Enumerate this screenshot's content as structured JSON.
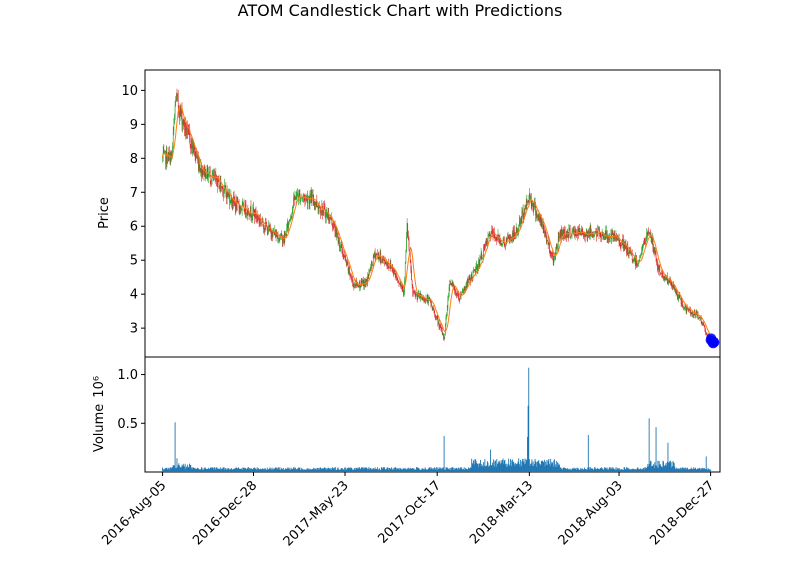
{
  "chart_data": {
    "type": "candlestick",
    "title": "ATOM Candlestick Chart with Predictions",
    "x_tick_labels": [
      "2016-Aug-05",
      "2016-Dec-28",
      "2017-May-23",
      "2017-Oct-17",
      "2018-Mar-13",
      "2018-Aug-03",
      "2018-Dec-27"
    ],
    "x_range": [
      "2016-Jul-08",
      "2019-Jan-11"
    ],
    "price_panel": {
      "ylabel": "Price",
      "ylim": [
        2.15,
        10.6
      ],
      "y_ticks": [
        3,
        4,
        5,
        6,
        7,
        8,
        9,
        10
      ],
      "up_color": "#2ca02c",
      "down_color": "#d62728",
      "moving_average_color": "#ff7f0e",
      "approx_close_anchors": [
        [
          "2016-Aug-05",
          8.0
        ],
        [
          "2016-Aug-20",
          8.05
        ],
        [
          "2016-Aug-26",
          9.8
        ],
        [
          "2016-Sep-08",
          9.0
        ],
        [
          "2016-Oct-05",
          7.7
        ],
        [
          "2016-Nov-01",
          7.3
        ],
        [
          "2016-Dec-01",
          6.6
        ],
        [
          "2016-Dec-28",
          6.4
        ],
        [
          "2017-Jan-20",
          5.9
        ],
        [
          "2017-Feb-15",
          5.6
        ],
        [
          "2017-Mar-05",
          6.9
        ],
        [
          "2017-Apr-01",
          6.8
        ],
        [
          "2017-May-01",
          6.2
        ],
        [
          "2017-Jun-05",
          4.3
        ],
        [
          "2017-Jun-25",
          4.3
        ],
        [
          "2017-Jul-10",
          5.2
        ],
        [
          "2017-Aug-05",
          4.8
        ],
        [
          "2017-Aug-25",
          4.1
        ],
        [
          "2017-Aug-30",
          6.0
        ],
        [
          "2017-Sep-08",
          4.0
        ],
        [
          "2017-Oct-05",
          3.8
        ],
        [
          "2017-Oct-28",
          2.7
        ],
        [
          "2017-Nov-06",
          4.4
        ],
        [
          "2017-Nov-20",
          3.9
        ],
        [
          "2017-Dec-20",
          4.8
        ],
        [
          "2018-Jan-10",
          5.8
        ],
        [
          "2018-Feb-01",
          5.5
        ],
        [
          "2018-Feb-20",
          5.8
        ],
        [
          "2018-Mar-13",
          6.9
        ],
        [
          "2018-Apr-05",
          5.9
        ],
        [
          "2018-Apr-20",
          5.0
        ],
        [
          "2018-May-01",
          5.8
        ],
        [
          "2018-Jun-01",
          5.8
        ],
        [
          "2018-Jul-01",
          5.8
        ],
        [
          "2018-Aug-03",
          5.6
        ],
        [
          "2018-Sep-01",
          4.9
        ],
        [
          "2018-Sep-20",
          5.9
        ],
        [
          "2018-Oct-05",
          4.7
        ],
        [
          "2018-Oct-25",
          4.3
        ],
        [
          "2018-Nov-15",
          3.6
        ],
        [
          "2018-Dec-10",
          3.3
        ],
        [
          "2018-Dec-27",
          2.6
        ]
      ],
      "predictions": {
        "color": "#0000ff",
        "points": [
          [
            "2018-Dec-27",
            2.65
          ],
          [
            "2018-Dec-28",
            2.7
          ],
          [
            "2018-Dec-29",
            2.62
          ],
          [
            "2018-Dec-30",
            2.58
          ],
          [
            "2018-Dec-31",
            2.55
          ],
          [
            "2019-Jan-01",
            2.6
          ],
          [
            "2019-Jan-02",
            2.58
          ]
        ]
      }
    },
    "volume_panel": {
      "ylabel": "Volume",
      "scale_label": "10⁶",
      "ylim": [
        0,
        1.18
      ],
      "y_ticks": [
        0.5,
        1.0
      ],
      "y_tick_labels": [
        "0.5",
        "1.0"
      ],
      "bar_color": "#1f77b4",
      "notable_bars": [
        [
          "2016-Aug-25",
          0.51
        ],
        [
          "2016-Aug-28",
          0.14
        ],
        [
          "2017-Oct-28",
          0.37
        ],
        [
          "2018-Jan-10",
          0.23
        ],
        [
          "2018-Mar-10",
          0.36
        ],
        [
          "2018-Mar-11",
          0.68
        ],
        [
          "2018-Mar-12",
          1.07
        ],
        [
          "2018-Jun-15",
          0.38
        ],
        [
          "2018-Sep-20",
          0.55
        ],
        [
          "2018-Oct-01",
          0.46
        ],
        [
          "2018-Oct-20",
          0.3
        ],
        [
          "2018-Dec-20",
          0.16
        ]
      ]
    }
  }
}
